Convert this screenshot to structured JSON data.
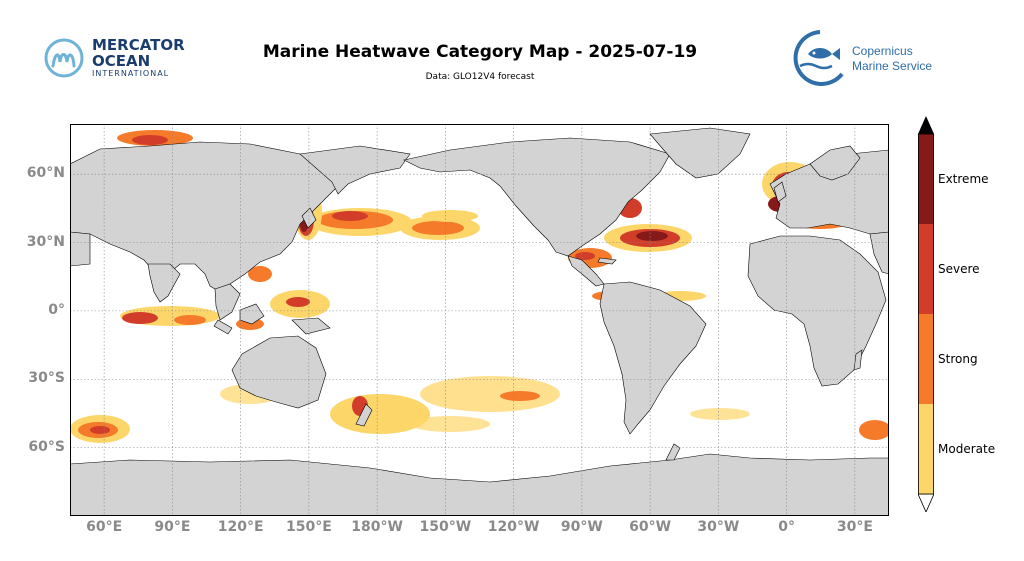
{
  "header": {
    "title": "Marine Heatwave Category Map - 2025-07-19",
    "subtitle": "Data: GLO12V4 forecast"
  },
  "logos": {
    "mercator": {
      "line1": "MERCATOR",
      "line2": "OCEAN",
      "line3": "INTERNATIONAL",
      "icon": "mercator-m-icon"
    },
    "copernicus": {
      "line1": "Copernicus",
      "line2": "Marine Service",
      "icon": "copernicus-fish-icon"
    }
  },
  "map": {
    "projection": "plate-carree",
    "center_longitude": 180,
    "grid": true,
    "land_color": "#d3d3d3",
    "ocean_color": "#ffffff",
    "lat_ticks": [
      {
        "value": 60,
        "label": "60°N"
      },
      {
        "value": 30,
        "label": "30°N"
      },
      {
        "value": 0,
        "label": "0°"
      },
      {
        "value": -30,
        "label": "30°S"
      },
      {
        "value": -60,
        "label": "60°S"
      }
    ],
    "lon_ticks": [
      {
        "value": 60,
        "label": "60°E"
      },
      {
        "value": 90,
        "label": "90°E"
      },
      {
        "value": 120,
        "label": "120°E"
      },
      {
        "value": 150,
        "label": "150°E"
      },
      {
        "value": 180,
        "label": "180°W"
      },
      {
        "value": 210,
        "label": "150°W"
      },
      {
        "value": 240,
        "label": "120°W"
      },
      {
        "value": 270,
        "label": "90°W"
      },
      {
        "value": 300,
        "label": "60°W"
      },
      {
        "value": 330,
        "label": "30°W"
      },
      {
        "value": 360,
        "label": "0°"
      },
      {
        "value": 390,
        "label": "30°E"
      }
    ]
  },
  "legend": {
    "categories": [
      {
        "name": "Moderate",
        "color": "#fdd66a"
      },
      {
        "name": "Strong",
        "color": "#f57a2a"
      },
      {
        "name": "Severe",
        "color": "#d23d2a"
      },
      {
        "name": "Extreme",
        "color": "#861a1a"
      }
    ]
  }
}
